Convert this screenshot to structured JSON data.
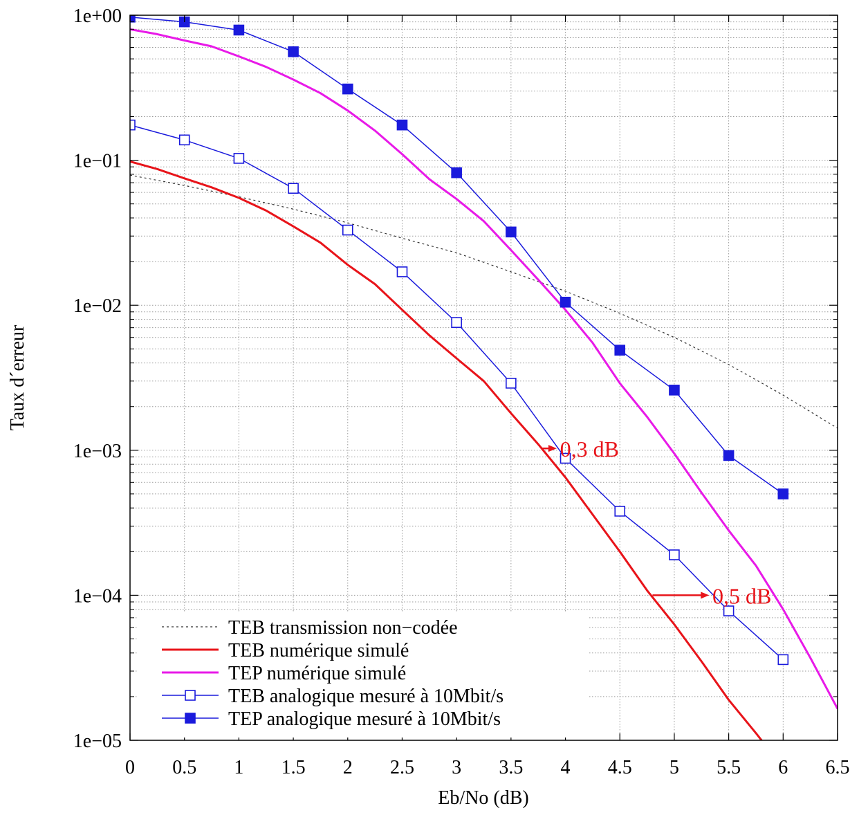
{
  "chart_data": {
    "type": "line",
    "xlabel": "Eb/No (dB)",
    "ylabel": "Taux d´erreur",
    "xlim": [
      0,
      6.5
    ],
    "ylim": [
      1e-05,
      1
    ],
    "yscale": "log",
    "grid": true,
    "legend_position": "bottom-left",
    "x_ticks": [
      {
        "value": 0,
        "label": "0"
      },
      {
        "value": 0.5,
        "label": "0.5"
      },
      {
        "value": 1,
        "label": "1"
      },
      {
        "value": 1.5,
        "label": "1.5"
      },
      {
        "value": 2,
        "label": "2"
      },
      {
        "value": 2.5,
        "label": "2.5"
      },
      {
        "value": 3,
        "label": "3"
      },
      {
        "value": 3.5,
        "label": "3.5"
      },
      {
        "value": 4,
        "label": "4"
      },
      {
        "value": 4.5,
        "label": "4.5"
      },
      {
        "value": 5,
        "label": "5"
      },
      {
        "value": 5.5,
        "label": "5.5"
      },
      {
        "value": 6,
        "label": "6"
      },
      {
        "value": 6.5,
        "label": "6.5"
      }
    ],
    "y_ticks": [
      {
        "value": 1,
        "label": "1e+00"
      },
      {
        "value": 0.1,
        "label": "1e−01"
      },
      {
        "value": 0.01,
        "label": "1e−02"
      },
      {
        "value": 0.001,
        "label": "1e−03"
      },
      {
        "value": 0.0001,
        "label": "1e−04"
      },
      {
        "value": 1e-05,
        "label": "1e−05"
      }
    ],
    "series": [
      {
        "name": "TEB transmission non−codée",
        "color": "#333333",
        "style": "dotted",
        "marker": "none",
        "x": [
          0,
          0.5,
          1,
          1.5,
          2,
          2.5,
          3,
          3.5,
          4,
          4.5,
          5,
          5.5,
          6,
          6.5
        ],
        "y": [
          0.079,
          0.067,
          0.056,
          0.046,
          0.037,
          0.029,
          0.023,
          0.017,
          0.0125,
          0.0088,
          0.006,
          0.0039,
          0.0024,
          0.00142
        ]
      },
      {
        "name": "TEB numérique simulé",
        "color": "#e8141a",
        "style": "solid",
        "width": 3,
        "marker": "none",
        "x": [
          0,
          0.25,
          0.5,
          0.75,
          1,
          1.25,
          1.5,
          1.75,
          2,
          2.25,
          2.5,
          2.75,
          3,
          3.25,
          3.5,
          3.75,
          4,
          4.25,
          4.5,
          4.75,
          5,
          5.25,
          5.5,
          5.75,
          5.85
        ],
        "y": [
          0.098,
          0.087,
          0.075,
          0.065,
          0.055,
          0.045,
          0.035,
          0.027,
          0.019,
          0.014,
          0.0093,
          0.0062,
          0.0043,
          0.003,
          0.0018,
          0.0011,
          0.00065,
          0.00036,
          0.0002,
          0.000108,
          6.3e-05,
          3.5e-05,
          1.9e-05,
          1.12e-05,
          9e-06
        ]
      },
      {
        "name": "TEP numérique simulé",
        "color": "#e81ae8",
        "style": "solid",
        "width": 3,
        "marker": "none",
        "x": [
          0,
          0.25,
          0.5,
          0.75,
          1,
          1.25,
          1.5,
          1.75,
          2,
          2.25,
          2.5,
          2.75,
          3,
          3.25,
          3.5,
          3.75,
          4,
          4.25,
          4.5,
          4.75,
          5,
          5.25,
          5.5,
          5.75,
          6,
          6.25,
          6.5
        ],
        "y": [
          0.8,
          0.74,
          0.67,
          0.61,
          0.52,
          0.44,
          0.36,
          0.29,
          0.22,
          0.16,
          0.11,
          0.074,
          0.054,
          0.038,
          0.024,
          0.015,
          0.0093,
          0.0055,
          0.0029,
          0.0017,
          0.00095,
          0.00051,
          0.00028,
          0.00016,
          8e-05,
          3.7e-05,
          1.65e-05
        ]
      },
      {
        "name": "TEB analogique mesuré à 10Mbit/s",
        "color": "#1a1adc",
        "style": "solid",
        "width": 1.5,
        "marker": "square-open",
        "x": [
          0,
          0.5,
          1,
          1.5,
          2,
          2.5,
          3,
          3.5,
          4,
          4.5,
          5,
          5.5,
          6
        ],
        "y": [
          0.175,
          0.138,
          0.103,
          0.064,
          0.033,
          0.017,
          0.0076,
          0.0029,
          0.00088,
          0.00038,
          0.00019,
          7.8e-05,
          3.6e-05
        ]
      },
      {
        "name": "TEP analogique mesuré à 10Mbit/s",
        "color": "#1a1adc",
        "style": "solid",
        "width": 1.5,
        "marker": "square-filled",
        "x": [
          0,
          0.5,
          1,
          1.5,
          2,
          2.5,
          3,
          3.5,
          4,
          4.5,
          5,
          5.5,
          6
        ],
        "y": [
          0.97,
          0.9,
          0.79,
          0.56,
          0.31,
          0.175,
          0.082,
          0.032,
          0.0105,
          0.0049,
          0.0026,
          0.00092,
          0.0005
        ]
      }
    ],
    "annotations": [
      {
        "text": "0,3 dB",
        "color": "#e8141a",
        "arrow_from": [
          3.78,
          0.00103
        ],
        "arrow_to": [
          3.92,
          0.00103
        ],
        "label_at": [
          3.95,
          0.00103
        ]
      },
      {
        "text": "0,5 dB",
        "color": "#e8141a",
        "arrow_from": [
          4.8,
          0.0001
        ],
        "arrow_to": [
          5.32,
          0.0001
        ],
        "label_at": [
          5.35,
          0.0001
        ]
      }
    ]
  }
}
